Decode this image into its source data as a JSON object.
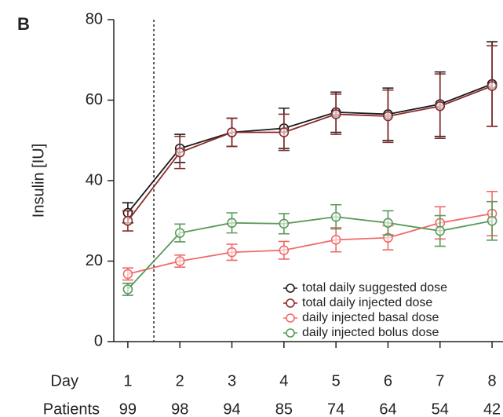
{
  "chart_data": {
    "type": "line",
    "panel": "B",
    "ylabel": "Insulin [IU]",
    "xlabel": "Day",
    "x": [
      1,
      2,
      3,
      4,
      5,
      6,
      7,
      8
    ],
    "xlim": [
      0.73,
      8.21
    ],
    "xticks": [
      1,
      2,
      3,
      4,
      5,
      6,
      7,
      8
    ],
    "ylim": [
      0,
      80
    ],
    "yticks": [
      0,
      20,
      40,
      60,
      80
    ],
    "vline": 1.5,
    "patients_label": "Patients",
    "patients": [
      99,
      98,
      94,
      85,
      74,
      64,
      54,
      42
    ],
    "legend": "lower right",
    "series": [
      {
        "name": "total daily suggested dose",
        "color": "#1a1a1a",
        "values": [
          32,
          48,
          52,
          53,
          57,
          56.5,
          59,
          64
        ],
        "errors": [
          2.5,
          3.5,
          3.5,
          5,
          5,
          6.5,
          8,
          10.5
        ]
      },
      {
        "name": "total daily injected dose",
        "color": "#8b2a2a",
        "values": [
          30,
          47,
          52,
          52,
          56.5,
          56,
          58.5,
          63.5
        ],
        "errors": [
          2.5,
          4,
          3.5,
          4.5,
          5,
          6.5,
          8,
          10
        ]
      },
      {
        "name": "daily injected basal dose",
        "color": "#f06a6a",
        "values": [
          16.8,
          20,
          22.2,
          22.7,
          25.3,
          25.8,
          29.5,
          31.8
        ],
        "errors": [
          1.5,
          1.5,
          2,
          2.2,
          3,
          3,
          4,
          5.5
        ]
      },
      {
        "name": "daily injected bolus dose",
        "color": "#5a9a5a",
        "values": [
          13,
          27,
          29.5,
          29.3,
          31,
          29.5,
          27.5,
          30
        ],
        "errors": [
          1.5,
          2.2,
          2.5,
          2.5,
          3,
          3,
          3.8,
          4.8
        ]
      }
    ]
  }
}
